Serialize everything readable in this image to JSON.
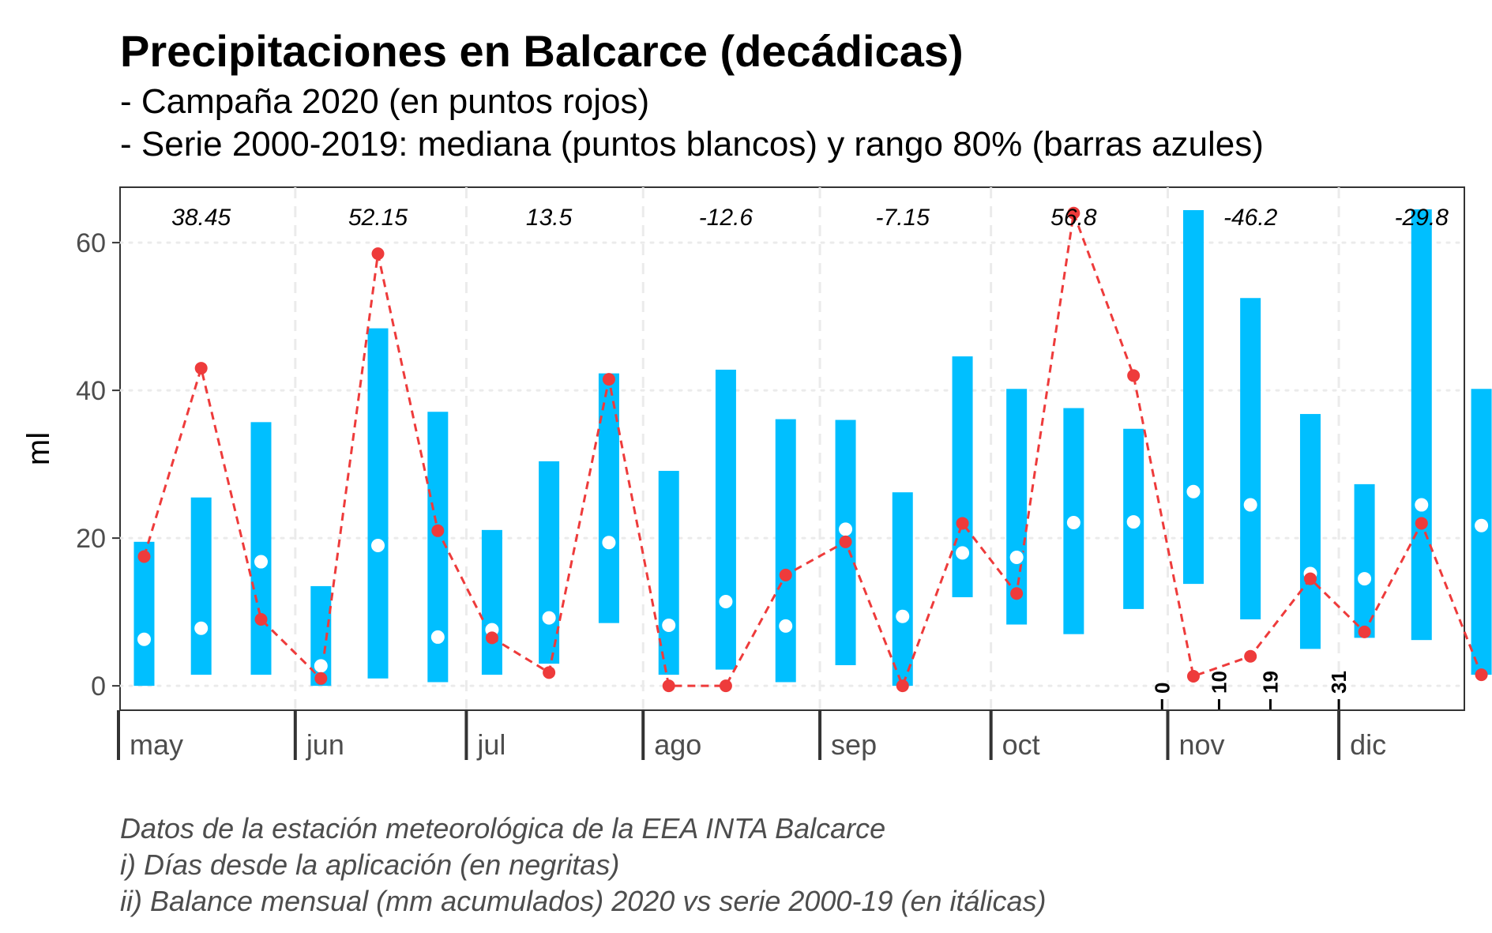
{
  "title": "Precipitaciones en Balcarce (decádicas)",
  "subtitle_lines": [
    "- Campaña 2020 (en puntos rojos)",
    "- Serie 2000-2019: mediana (puntos blancos) y rango 80% (barras azules)"
  ],
  "caption_lines": [
    "Datos de la estación meteorológica de la EEA INTA Balcarce",
    "i) Días desde la aplicación (en negritas)",
    "ii) Balance mensual (mm acumulados) 2020 vs serie 2000-19 (en itálicas)"
  ],
  "colors": {
    "bar": "#00BFFF",
    "campaign": "#EE3B3B",
    "median": "#FFFFFF",
    "grid": "#EBEBEB"
  },
  "chart_data": {
    "type": "bar",
    "ylabel": "ml",
    "ylim": [
      -3.3,
      67.5
    ],
    "yticks": [
      0,
      20,
      40,
      60
    ],
    "grid": true,
    "months": [
      "may",
      "jun",
      "jul",
      "ago",
      "sep",
      "oct",
      "nov",
      "dic"
    ],
    "x": [
      "may-1",
      "may-2",
      "may-3",
      "jun-1",
      "jun-2",
      "jun-3",
      "jul-1",
      "jul-2",
      "jul-3",
      "ago-1",
      "ago-2",
      "ago-3",
      "sep-1",
      "sep-2",
      "sep-3",
      "oct-1",
      "oct-2",
      "oct-3",
      "nov-1",
      "nov-2",
      "nov-3",
      "dic-1",
      "dic-2",
      "dic-3"
    ],
    "series": [
      {
        "name": "Campaña 2020",
        "values": [
          17.5,
          43,
          9,
          1,
          58.5,
          21,
          6.5,
          1.8,
          41.5,
          0,
          0,
          15,
          19.5,
          0,
          22,
          12.5,
          64,
          42,
          1.3,
          4,
          14.5,
          7.3,
          22,
          1.5
        ]
      },
      {
        "name": "mediana",
        "values": [
          6.3,
          7.8,
          16.8,
          2.7,
          19,
          6.6,
          7.6,
          9.2,
          19.4,
          8.2,
          11.4,
          8.1,
          21.2,
          9.4,
          18,
          17.4,
          22.1,
          22.2,
          26.3,
          24.5,
          15.2,
          14.5,
          24.5,
          21.7
        ]
      },
      {
        "name": "rango 80%",
        "low": [
          0,
          1.5,
          1.5,
          0,
          1,
          0.5,
          1.5,
          3,
          8.5,
          1.5,
          2.2,
          0.5,
          2.8,
          0,
          12,
          8.3,
          7,
          10.4,
          13.8,
          9,
          5,
          6.5,
          6.2,
          1.5
        ],
        "high": [
          19.5,
          25.5,
          35.7,
          13.5,
          48.4,
          37.1,
          21.1,
          30.4,
          42.3,
          29.1,
          42.8,
          36.1,
          36,
          26.2,
          44.6,
          40.2,
          37.6,
          34.8,
          64.4,
          52.5,
          36.8,
          27.3,
          64.5,
          40.2
        ]
      }
    ],
    "balance": {
      "may": "38.45",
      "jun": "52.15",
      "jul": "13.5",
      "ago": "-12.6",
      "sep": "-7.15",
      "oct": "56.8",
      "nov": "-46.2",
      "dic": "-29.8"
    },
    "days_marks": [
      {
        "label": "0",
        "date": "2020-10-31"
      },
      {
        "label": "10",
        "date": "2020-11-10"
      },
      {
        "label": "19",
        "date": "2020-11-19"
      },
      {
        "label": "31",
        "date": "2020-12-01"
      }
    ]
  }
}
